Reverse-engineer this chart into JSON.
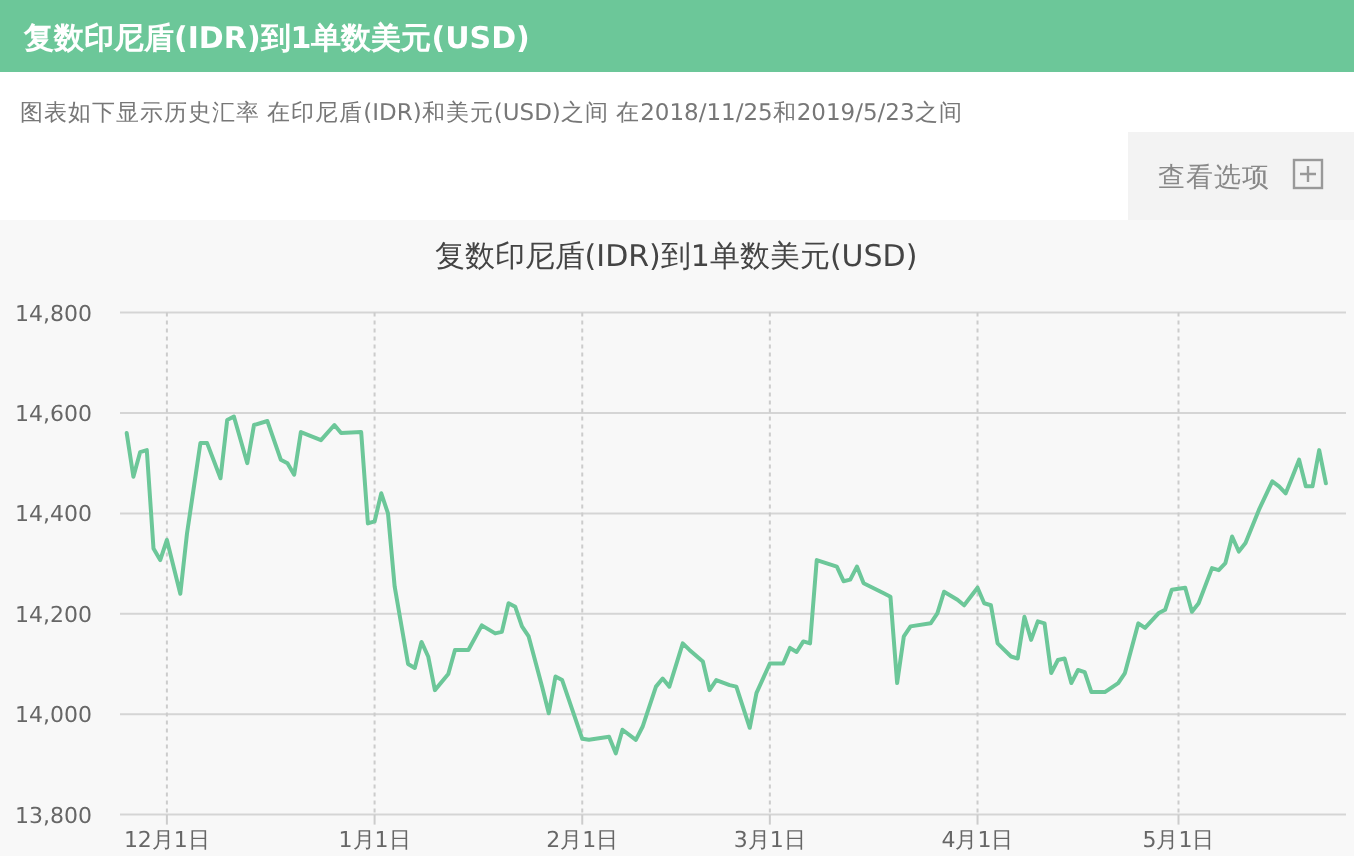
{
  "chart_data": {
    "type": "line",
    "title": "复数印尼盾(IDR)到1单数美元(USD)",
    "subtitle": "图表如下显示历史汇率 在印尼盾(IDR)和美元(USD)之间 在2018/11/25和2019/5/23之间",
    "annotations": [
      "复数印尼盾(IDR)到1单数美元(USD)",
      "查看选项"
    ],
    "xlim": [
      "2018-11-24",
      "2019-05-26"
    ],
    "xticks": [
      {
        "value": "2018-12-01",
        "label": "12月1日"
      },
      {
        "value": "2019-01-01",
        "label": "1月1日"
      },
      {
        "value": "2019-02-01",
        "label": "2月1日"
      },
      {
        "value": "2019-03-01",
        "label": "3月1日"
      },
      {
        "value": "2019-04-01",
        "label": "4月1日"
      },
      {
        "value": "2019-05-01",
        "label": "5月1日"
      }
    ],
    "ylim": [
      13800,
      14800
    ],
    "yticks": [
      {
        "value": 13800,
        "label": "13,800"
      },
      {
        "value": 14000,
        "label": "14,000"
      },
      {
        "value": 14200,
        "label": "14,200"
      },
      {
        "value": 14400,
        "label": "14,400"
      },
      {
        "value": 14600,
        "label": "14,600"
      },
      {
        "value": 14800,
        "label": "14,800"
      }
    ],
    "grid": true,
    "line_style": "solid",
    "marker": "none",
    "series": [
      {
        "color": "#6cc799",
        "x": [
          "2018-11-25",
          "2018-11-26",
          "2018-11-27",
          "2018-11-28",
          "2018-11-29",
          "2018-11-30",
          "2018-12-01",
          "2018-12-03",
          "2018-12-04",
          "2018-12-06",
          "2018-12-07",
          "2018-12-09",
          "2018-12-10",
          "2018-12-11",
          "2018-12-13",
          "2018-12-14",
          "2018-12-16",
          "2018-12-18",
          "2018-12-19",
          "2018-12-20",
          "2018-12-21",
          "2018-12-24",
          "2018-12-26",
          "2018-12-27",
          "2018-12-30",
          "2018-12-31",
          "2019-01-01",
          "2019-01-02",
          "2019-01-03",
          "2019-01-04",
          "2019-01-06",
          "2019-01-07",
          "2019-01-08",
          "2019-01-09",
          "2019-01-10",
          "2019-01-12",
          "2019-01-13",
          "2019-01-15",
          "2019-01-17",
          "2019-01-19",
          "2019-01-20",
          "2019-01-21",
          "2019-01-22",
          "2019-01-23",
          "2019-01-24",
          "2019-01-26",
          "2019-01-27",
          "2019-01-28",
          "2019-01-29",
          "2019-02-01",
          "2019-02-02",
          "2019-02-05",
          "2019-02-06",
          "2019-02-07",
          "2019-02-09",
          "2019-02-10",
          "2019-02-12",
          "2019-02-13",
          "2019-02-14",
          "2019-02-16",
          "2019-02-17",
          "2019-02-19",
          "2019-02-20",
          "2019-02-21",
          "2019-02-23",
          "2019-02-24",
          "2019-02-26",
          "2019-02-27",
          "2019-03-01",
          "2019-03-03",
          "2019-03-04",
          "2019-03-05",
          "2019-03-06",
          "2019-03-07",
          "2019-03-08",
          "2019-03-11",
          "2019-03-12",
          "2019-03-13",
          "2019-03-14",
          "2019-03-15",
          "2019-03-18",
          "2019-03-19",
          "2019-03-20",
          "2019-03-21",
          "2019-03-22",
          "2019-03-25",
          "2019-03-26",
          "2019-03-27",
          "2019-03-29",
          "2019-03-30",
          "2019-04-01",
          "2019-04-02",
          "2019-04-03",
          "2019-04-04",
          "2019-04-06",
          "2019-04-07",
          "2019-04-08",
          "2019-04-09",
          "2019-04-10",
          "2019-04-11",
          "2019-04-12",
          "2019-04-13",
          "2019-04-14",
          "2019-04-15",
          "2019-04-16",
          "2019-04-17",
          "2019-04-18",
          "2019-04-20",
          "2019-04-22",
          "2019-04-23",
          "2019-04-25",
          "2019-04-26",
          "2019-04-28",
          "2019-04-29",
          "2019-04-30",
          "2019-05-02",
          "2019-05-03",
          "2019-05-04",
          "2019-05-06",
          "2019-05-07",
          "2019-05-08",
          "2019-05-09",
          "2019-05-10",
          "2019-05-11",
          "2019-05-13",
          "2019-05-15",
          "2019-05-16",
          "2019-05-17",
          "2019-05-18",
          "2019-05-19",
          "2019-05-20",
          "2019-05-21",
          "2019-05-22",
          "2019-05-23"
        ],
        "values": [
          14560,
          14473,
          14522,
          14526,
          14330,
          14307,
          14347,
          14240,
          14360,
          14540,
          14540,
          14470,
          14586,
          14593,
          14500,
          14576,
          14584,
          14507,
          14500,
          14477,
          14562,
          14546,
          14576,
          14560,
          14562,
          14380,
          14384,
          14440,
          14400,
          14254,
          14100,
          14092,
          14144,
          14115,
          14048,
          14080,
          14128,
          14128,
          14177,
          14161,
          14164,
          14221,
          14214,
          14175,
          14155,
          14055,
          14002,
          14075,
          14068,
          13951,
          13949,
          13955,
          13922,
          13969,
          13949,
          13975,
          14055,
          14071,
          14055,
          14141,
          14128,
          14105,
          14048,
          14068,
          14058,
          14055,
          13973,
          14042,
          14101,
          14101,
          14132,
          14124,
          14145,
          14141,
          14307,
          14294,
          14265,
          14268,
          14294,
          14261,
          14241,
          14234,
          14062,
          14155,
          14175,
          14181,
          14201,
          14244,
          14228,
          14217,
          14252,
          14221,
          14217,
          14141,
          14115,
          14111,
          14194,
          14148,
          14185,
          14181,
          14082,
          14108,
          14111,
          14062,
          14088,
          14084,
          14044,
          14044,
          14062,
          14082,
          14181,
          14172,
          14201,
          14208,
          14248,
          14252,
          14204,
          14221,
          14291,
          14287,
          14301,
          14354,
          14324,
          14341,
          14407,
          14464,
          14454,
          14440,
          14473,
          14507,
          14454,
          14454,
          14526,
          14460
        ]
      }
    ]
  }
}
